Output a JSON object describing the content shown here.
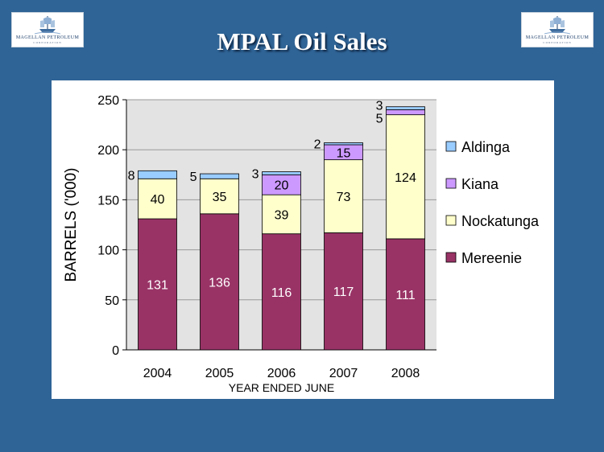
{
  "slide": {
    "title": "MPAL Oil Sales",
    "logo_name": "MAGELLAN PETROLEUM",
    "logo_sub": "CORPORATION"
  },
  "chart_data": {
    "type": "bar",
    "stacked": true,
    "categories": [
      "2004",
      "2005",
      "2006",
      "2007",
      "2008"
    ],
    "series": [
      {
        "name": "Mereenie",
        "color": "#993366",
        "label_color": "#ffffff",
        "values": [
          131,
          136,
          116,
          117,
          111
        ]
      },
      {
        "name": "Nockatunga",
        "color": "#ffffcc",
        "label_color": "#000000",
        "values": [
          40,
          35,
          39,
          73,
          124
        ]
      },
      {
        "name": "Kiana",
        "color": "#cc99ff",
        "label_color": "#000000",
        "values": [
          0,
          0,
          20,
          15,
          5
        ]
      },
      {
        "name": "Aldinga",
        "color": "#99ccff",
        "label_color": "#000000",
        "values": [
          8,
          5,
          3,
          2,
          3
        ]
      }
    ],
    "data_labels": [
      [
        "131",
        "40",
        "",
        "8"
      ],
      [
        "136",
        "35",
        "",
        "5"
      ],
      [
        "116",
        "39",
        "20",
        "3"
      ],
      [
        "117",
        "73",
        "15",
        "2"
      ],
      [
        "111",
        "124",
        "5",
        "3"
      ]
    ],
    "xlabel": "YEAR ENDED JUNE",
    "ylabel": "BARRELS ('000)",
    "ylim": [
      0,
      250
    ],
    "yticks": [
      0,
      50,
      100,
      150,
      200,
      250
    ],
    "grid": true,
    "legend_position": "right",
    "legend_order": [
      "Aldinga",
      "Kiana",
      "Nockatunga",
      "Mereenie"
    ]
  }
}
